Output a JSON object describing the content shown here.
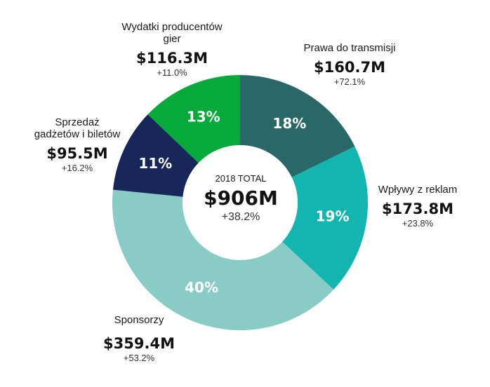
{
  "chart_data": {
    "type": "pie",
    "donut": true,
    "center": {
      "label": "2018 TOTAL",
      "value": "$906M",
      "change": "+38.2%"
    },
    "slices": [
      {
        "name": "Prawa do transmisji",
        "value": "$160.7M",
        "amount": 160.7,
        "change": "+72.1%",
        "percent_label": "18%",
        "color": "#2a6868"
      },
      {
        "name": "Wpływy z reklam",
        "value": "$173.8M",
        "amount": 173.8,
        "change": "+23.8%",
        "percent_label": "19%",
        "color": "#13b5b1"
      },
      {
        "name": "Sponsorzy",
        "value": "$359.4M",
        "amount": 359.4,
        "change": "+53.2%",
        "percent_label": "40%",
        "color": "#88ccc5"
      },
      {
        "name": "Sprzedaż gadżetów i biletów",
        "value": "$95.5M",
        "amount": 95.5,
        "change": "+16.2%",
        "percent_label": "11%",
        "color": "#17275a"
      },
      {
        "name": "Wydatki producentów gier",
        "value": "$116.3M",
        "amount": 116.3,
        "change": "+11.0%",
        "percent_label": "13%",
        "color": "#06aa3a"
      }
    ]
  }
}
